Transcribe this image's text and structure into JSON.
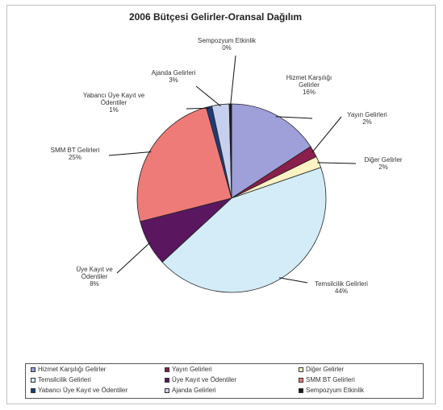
{
  "chart_data": {
    "type": "pie",
    "title": "2006 Bütçesi Gelirler-Oransal Dağılım",
    "slices": [
      {
        "name": "Hizmet Karşılığı Gelirler",
        "label_lines": [
          "Hizmet Karşılığı",
          "Gelirler"
        ],
        "percent_label": "16%",
        "value": 16,
        "color": "#9f9fd9"
      },
      {
        "name": "Yayın Gelirleri",
        "label_lines": [
          "Yayın Gelirleri"
        ],
        "percent_label": "2%",
        "value": 2,
        "color": "#8a1f4c"
      },
      {
        "name": "Diğer Gelirler",
        "label_lines": [
          "Diğer Gelirler"
        ],
        "percent_label": "2%",
        "value": 2,
        "color": "#fff3c4"
      },
      {
        "name": "Temsilcilik Gelirleri",
        "label_lines": [
          "Temsilcilik Gelirleri"
        ],
        "percent_label": "44%",
        "value": 44,
        "color": "#d3ecf7"
      },
      {
        "name": "Üye Kayıt ve Ödentiler",
        "label_lines": [
          "Üye Kayıt ve",
          "Ödentiler"
        ],
        "percent_label": "8%",
        "value": 8,
        "color": "#5a1760"
      },
      {
        "name": "SMM BT Gelirleri",
        "label_lines": [
          "SMM BT Gelirleri"
        ],
        "percent_label": "25%",
        "value": 25,
        "color": "#ef7b78"
      },
      {
        "name": "Yabancı Üye Kayıt ve Ödentiler",
        "label_lines": [
          "Yabancı Üye Kayıt ve",
          "Ödentiler"
        ],
        "percent_label": "1%",
        "value": 1,
        "color": "#1f3c78"
      },
      {
        "name": "Ajanda Gelirleri",
        "label_lines": [
          "Ajanda Gelirleri"
        ],
        "percent_label": "3%",
        "value": 3,
        "color": "#c6d0ee"
      },
      {
        "name": "Sempozyum Etkinlik",
        "label_lines": [
          "Sempozyum Etkinlik"
        ],
        "percent_label": "0%",
        "value": 0.4,
        "color": "#1a1a1a"
      }
    ],
    "legend": {
      "placement": "bottom",
      "items": [
        {
          "label": "Hizmet Karşılığı Gelirler",
          "color": "#9f9fd9"
        },
        {
          "label": "Yayın Gelirleri",
          "color": "#8a1f4c"
        },
        {
          "label": "Diğer Gelirler",
          "color": "#fff3c4"
        },
        {
          "label": "Temsilcilik Gelirleri",
          "color": "#d3ecf7"
        },
        {
          "label": "Üye Kayıt ve Ödentiler",
          "color": "#5a1760"
        },
        {
          "label": "SMM BT Gelirleri",
          "color": "#ef7b78"
        },
        {
          "label": "Yabancı Üye Kayıt ve Ödentiler",
          "color": "#1f3c78"
        },
        {
          "label": "Ajanda Gelirleri",
          "color": "#c6d0ee"
        },
        {
          "label": "Sempozyum Etkinlik",
          "color": "#1a1a1a"
        }
      ]
    }
  }
}
